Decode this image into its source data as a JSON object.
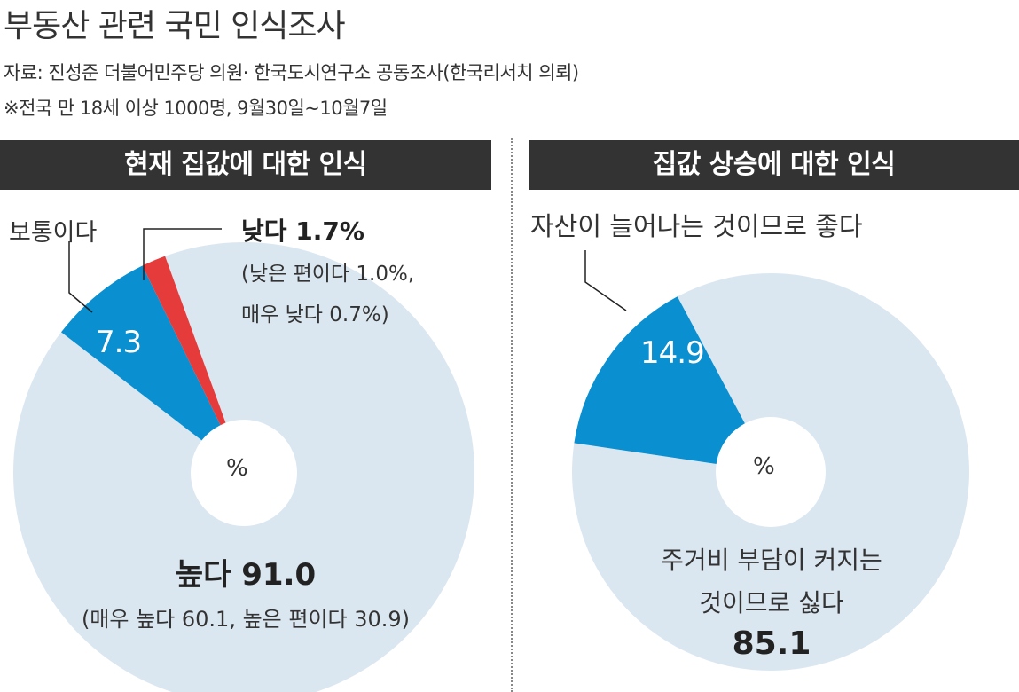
{
  "title": "부동산 관련 국민 인식조사",
  "source": "자료: 진성준 더불어민주당 의원· 한국도시연구소 공동조사(한국리서치 의뢰)",
  "note": "※전국 만 18세 이상 1000명, 9월30일~10월7일",
  "colors": {
    "light": "#dbe7f0",
    "blue": "#0a8fd0",
    "red": "#e63b3b",
    "header": "#333333"
  },
  "left": {
    "header": "현재 집값에 대한 인식",
    "center": "%",
    "high_label": "높다 91.0",
    "high_sub": "(매우 높다 60.1, 높은 편이다 30.9)",
    "normal_label": "보통이다",
    "normal_value": "7.3",
    "low_label": "낮다 1.7%",
    "low_sub1": "(낮은 편이다 1.0%,",
    "low_sub2": "매우 낮다 0.7%)"
  },
  "right": {
    "header": "집값 상승에 대한 인식",
    "center": "%",
    "good_label": "자산이 늘어나는 것이므로 좋다",
    "good_value": "14.9",
    "bad_label1": "주거비 부담이 커지는",
    "bad_label2": "것이므로 싫다",
    "bad_value": "85.1"
  },
  "chart_data": [
    {
      "type": "pie",
      "title": "현재 집값에 대한 인식",
      "unit": "%",
      "slices": [
        {
          "name": "높다",
          "value": 91.0,
          "color": "#dbe7f0"
        },
        {
          "name": "보통이다",
          "value": 7.3,
          "color": "#0a8fd0"
        },
        {
          "name": "낮다",
          "value": 1.7,
          "color": "#e63b3b"
        }
      ],
      "annotations": [
        "매우 높다 60.1",
        "높은 편이다 30.9",
        "낮은 편이다 1.0%",
        "매우 낮다 0.7%"
      ]
    },
    {
      "type": "pie",
      "title": "집값 상승에 대한 인식",
      "unit": "%",
      "slices": [
        {
          "name": "주거비 부담이 커지는 것이므로 싫다",
          "value": 85.1,
          "color": "#dbe7f0"
        },
        {
          "name": "자산이 늘어나는 것이므로 좋다",
          "value": 14.9,
          "color": "#0a8fd0"
        }
      ]
    }
  ]
}
